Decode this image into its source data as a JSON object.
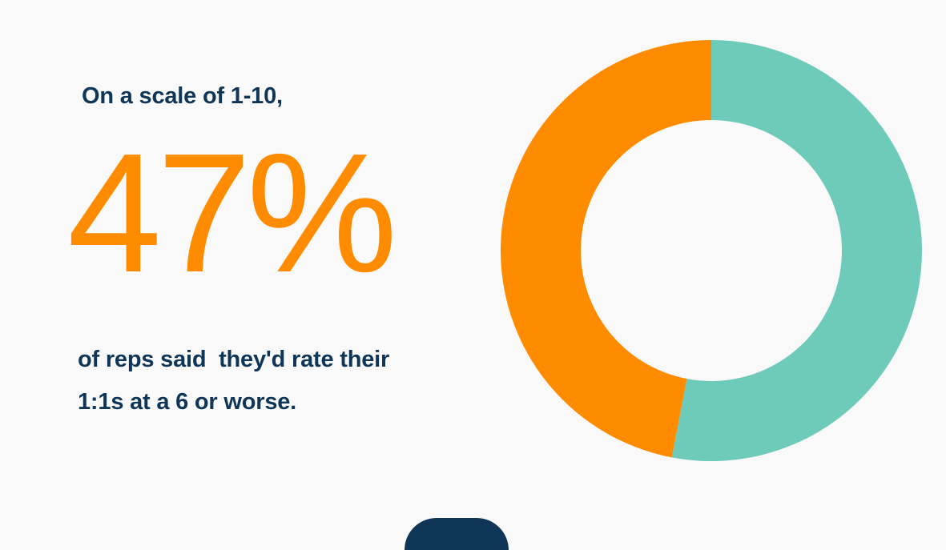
{
  "intro": "On a scale of 1-10,",
  "stat": "47%",
  "description": {
    "line1": "of reps said  they'd rate their",
    "line2": "1:1s at a 6 or worse."
  },
  "colors": {
    "highlight": "#ff8c00",
    "rest": "#6ecbb9",
    "text": "#0f3557",
    "background": "#f9f9f9"
  },
  "chart_data": {
    "type": "pie",
    "donut": true,
    "start_angle_deg": 0,
    "direction": "clockwise",
    "slices": [
      {
        "value": 53,
        "color": "#6ecbb9"
      },
      {
        "value": 47,
        "color": "#ff8c00"
      }
    ]
  }
}
